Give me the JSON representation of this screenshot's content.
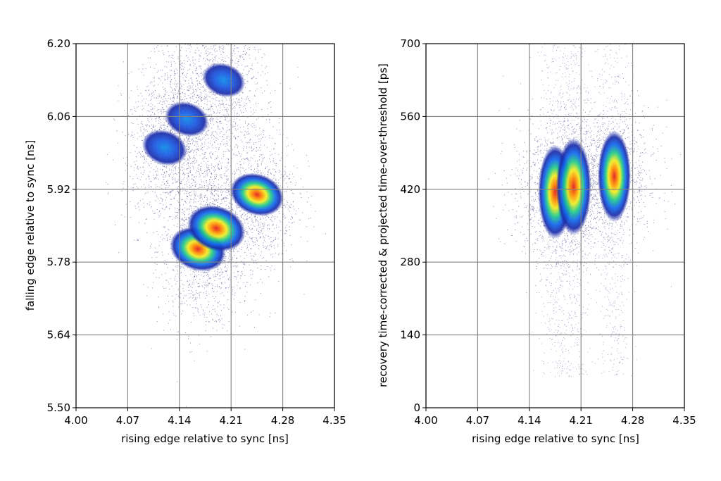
{
  "chart_data": [
    {
      "type": "heatmap",
      "title": "",
      "xlabel": "rising edge relative to sync [ns]",
      "ylabel": "falling edge relative to sync [ns]",
      "xlim": [
        4.0,
        4.35
      ],
      "ylim": [
        5.5,
        6.2
      ],
      "xticks": [
        "4.00",
        "4.07",
        "4.14",
        "4.21",
        "4.28",
        "4.35"
      ],
      "yticks": [
        "5.50",
        "5.64",
        "5.78",
        "5.92",
        "6.06",
        "6.20"
      ],
      "grid": true,
      "colormap": "jet",
      "clusters": [
        {
          "x": 4.165,
          "y": 5.805,
          "peak": 0.85
        },
        {
          "x": 4.19,
          "y": 5.845,
          "peak": 0.95
        },
        {
          "x": 4.245,
          "y": 5.91,
          "peak": 0.75
        },
        {
          "x": 4.12,
          "y": 6.0,
          "peak": 0.35
        },
        {
          "x": 4.15,
          "y": 6.055,
          "peak": 0.3
        },
        {
          "x": 4.2,
          "y": 6.13,
          "peak": 0.25
        }
      ]
    },
    {
      "type": "heatmap",
      "title": "",
      "xlabel": "rising edge relative to sync [ns]",
      "ylabel": "recovery time-corrected & projected time-over-threshold [ps]",
      "xlim": [
        4.0,
        4.35
      ],
      "ylim": [
        0,
        700
      ],
      "xticks": [
        "4.00",
        "4.07",
        "4.14",
        "4.21",
        "4.28",
        "4.35"
      ],
      "yticks": [
        "0",
        "140",
        "280",
        "420",
        "560",
        "700"
      ],
      "grid": true,
      "colormap": "jet",
      "clusters": [
        {
          "x": 4.175,
          "y": 415,
          "peak": 0.85
        },
        {
          "x": 4.2,
          "y": 425,
          "peak": 0.95
        },
        {
          "x": 4.255,
          "y": 445,
          "peak": 0.75
        }
      ]
    }
  ],
  "colors": {
    "grid": "#808080",
    "sparse": "#1a1a6e",
    "low": "#0033ff",
    "mid": "#00cc66",
    "high": "#ffee00",
    "peak": "#ff3300"
  }
}
